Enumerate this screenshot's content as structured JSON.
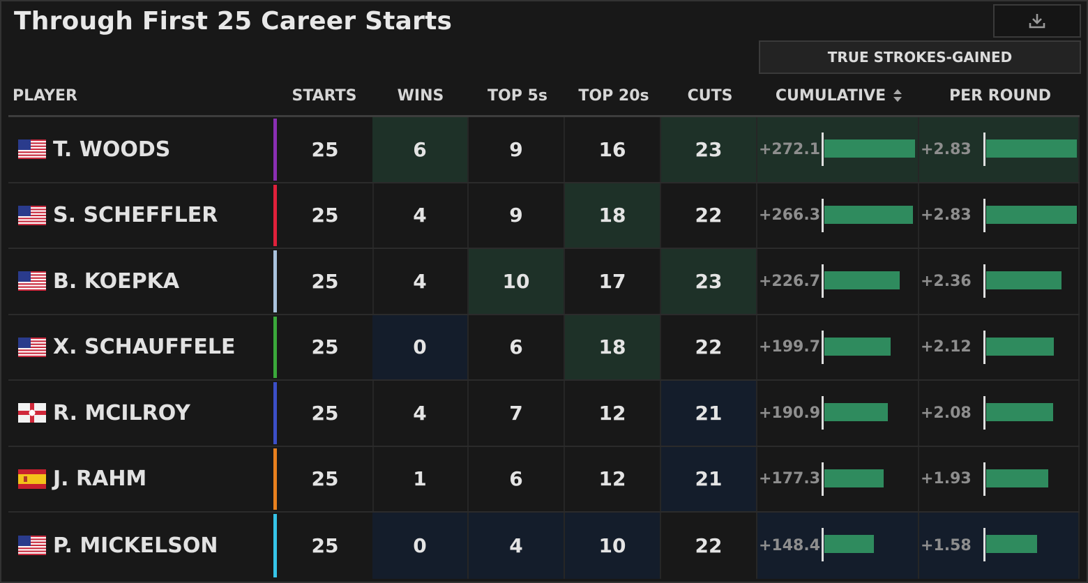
{
  "title": "Through First 25 Career Starts",
  "download_icon": "download-icon",
  "group_header": "TRUE STROKES-GAINED",
  "columns": {
    "player": "PLAYER",
    "starts": "STARTS",
    "wins": "WINS",
    "top5": "TOP 5s",
    "top20": "TOP 20s",
    "cuts": "CUTS",
    "cumulative": "CUMULATIVE",
    "per_round": "PER ROUND"
  },
  "sort_icon": "sort-icon",
  "colors": {
    "positive_bar": "#2f8b5e",
    "highlight_green": "#1e3128",
    "highlight_blue": "#141d2b"
  },
  "rows": [
    {
      "flag": "usa-flag",
      "name": "T. WOODS",
      "color": "#8a2fb3",
      "starts": "25",
      "wins": "6",
      "top5": "9",
      "top20": "16",
      "cuts": "23",
      "cumulative": "+272.1",
      "cumulative_value": 272.1,
      "per_round": "+2.83",
      "per_round_value": 2.83,
      "hl": {
        "wins": "green",
        "cuts": "green",
        "cumulative": "green",
        "per_round": "green"
      }
    },
    {
      "flag": "usa-flag",
      "name": "S. SCHEFFLER",
      "color": "#e0213a",
      "starts": "25",
      "wins": "4",
      "top5": "9",
      "top20": "18",
      "cuts": "22",
      "cumulative": "+266.3",
      "cumulative_value": 266.3,
      "per_round": "+2.83",
      "per_round_value": 2.83,
      "hl": {
        "top20": "green"
      }
    },
    {
      "flag": "usa-flag",
      "name": "B. KOEPKA",
      "color": "#a9c2dc",
      "starts": "25",
      "wins": "4",
      "top5": "10",
      "top20": "17",
      "cuts": "23",
      "cumulative": "+226.7",
      "cumulative_value": 226.7,
      "per_round": "+2.36",
      "per_round_value": 2.36,
      "hl": {
        "top5": "green",
        "cuts": "green"
      }
    },
    {
      "flag": "usa-flag",
      "name": "X. SCHAUFFELE",
      "color": "#3aa83a",
      "starts": "25",
      "wins": "0",
      "top5": "6",
      "top20": "18",
      "cuts": "22",
      "cumulative": "+199.7",
      "cumulative_value": 199.7,
      "per_round": "+2.12",
      "per_round_value": 2.12,
      "hl": {
        "wins": "blue",
        "top20": "green"
      }
    },
    {
      "flag": "northern-ireland-flag",
      "name": "R. MCILROY",
      "color": "#3b4fc8",
      "starts": "25",
      "wins": "4",
      "top5": "7",
      "top20": "12",
      "cuts": "21",
      "cumulative": "+190.9",
      "cumulative_value": 190.9,
      "per_round": "+2.08",
      "per_round_value": 2.08,
      "hl": {
        "cuts": "blue"
      }
    },
    {
      "flag": "spain-flag",
      "name": "J. RAHM",
      "color": "#e8801e",
      "starts": "25",
      "wins": "1",
      "top5": "6",
      "top20": "12",
      "cuts": "21",
      "cumulative": "+177.3",
      "cumulative_value": 177.3,
      "per_round": "+1.93",
      "per_round_value": 1.93,
      "hl": {
        "cuts": "blue"
      }
    },
    {
      "flag": "usa-flag",
      "name": "P. MICKELSON",
      "color": "#36c4e8",
      "starts": "25",
      "wins": "0",
      "top5": "4",
      "top20": "10",
      "cuts": "22",
      "cumulative": "+148.4",
      "cumulative_value": 148.4,
      "per_round": "+1.58",
      "per_round_value": 1.58,
      "hl": {
        "wins": "blue",
        "top5": "blue",
        "top20": "blue",
        "cumulative": "blue",
        "per_round": "blue"
      }
    }
  ]
}
